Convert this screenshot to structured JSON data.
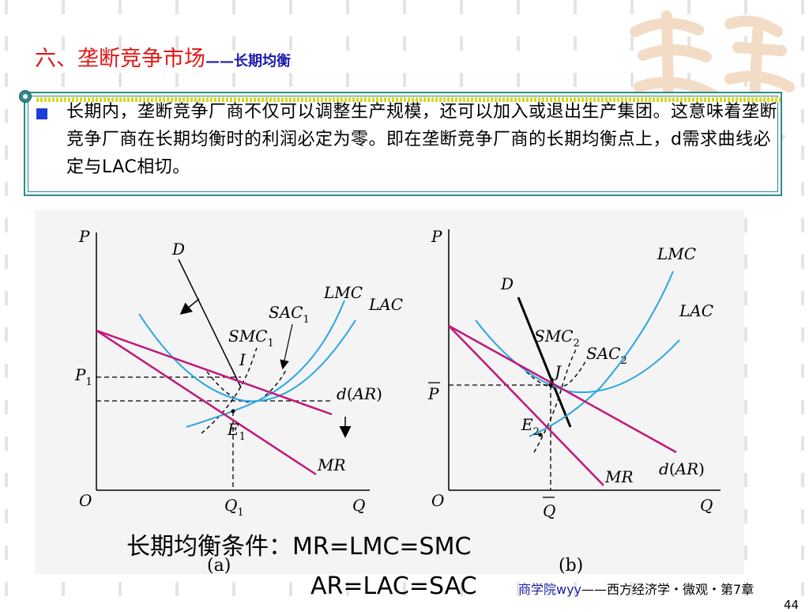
{
  "slide": {
    "title_main": "六、垄断竞争市场",
    "title_sub": "——长期均衡",
    "paragraph": "长期内，垄断竞争厂商不仅可以调整生产规模，还可以加入或退出生产集团。这意味着垄断竞争厂商在长期均衡时的利润必定为零。即在垄断竞争厂商的长期均衡点上，d需求曲线必定与LAC相切。",
    "equation_1": "长期均衡条件：MR=LMC=SMC",
    "equation_2": "AR=LAC=SAC",
    "footer_school": "商学院wyy",
    "footer_course": "——西方经济学・微观・第7章",
    "page_number": "44"
  },
  "chart_data": [
    {
      "type": "line",
      "panel": "(a)",
      "axis_labels": {
        "y": "P",
        "x": "Q",
        "origin": "O"
      },
      "tick_labels": {
        "y": "P1",
        "x": "Q1"
      },
      "curves": [
        "D",
        "d(AR)",
        "MR",
        "LMC",
        "LAC",
        "SMC1",
        "SAC1"
      ],
      "points": [
        "I",
        "E1"
      ],
      "arrows": [
        "D shifts left",
        "d(AR) shifts down"
      ],
      "colors": {
        "demand": "#c0187a",
        "cost": "#2aa6e0",
        "short_run": "#000000"
      }
    },
    {
      "type": "line",
      "panel": "(b)",
      "axis_labels": {
        "y": "P",
        "x": "Q",
        "origin": "O"
      },
      "tick_labels": {
        "y": "P̄",
        "x": "Q̄"
      },
      "curves": [
        "D",
        "d(AR)",
        "MR",
        "LMC",
        "LAC",
        "SMC2",
        "SAC2"
      ],
      "points": [
        "J",
        "E2"
      ],
      "colors": {
        "demand": "#c0187a",
        "cost": "#2aa6e0",
        "short_run": "#000000"
      }
    }
  ]
}
